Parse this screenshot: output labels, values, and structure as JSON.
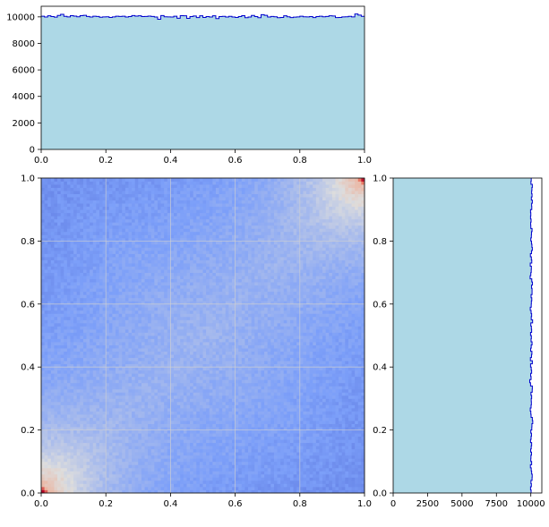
{
  "chart_data": [
    {
      "type": "histogram",
      "panel": "top-marginal",
      "orientation": "vertical",
      "xlim": [
        0,
        1
      ],
      "ylim": [
        0,
        10800
      ],
      "x_ticks": [
        "0.0",
        "0.2",
        "0.4",
        "0.6",
        "0.8",
        "1.0"
      ],
      "y_ticks": [
        "0",
        "2000",
        "4000",
        "6000",
        "8000",
        "10000"
      ],
      "bins": 100,
      "fill_color": "#add8e6",
      "edge_color": "#0000cd",
      "counts": [
        10050,
        9990,
        10080,
        10020,
        9980,
        10110,
        10190,
        10040,
        10000,
        10090,
        10060,
        10010,
        10090,
        10120,
        10030,
        9990,
        10050,
        10030,
        9970,
        10000,
        10010,
        9960,
        10000,
        10050,
        10030,
        10050,
        9990,
        10020,
        10100,
        10060,
        10080,
        10020,
        10030,
        10060,
        10030,
        9990,
        9820,
        10100,
        10010,
        10000,
        9990,
        10050,
        9900,
        10090,
        10080,
        9890,
        10020,
        10070,
        9950,
        10080,
        9960,
        10020,
        9990,
        10080,
        9870,
        10020,
        10040,
        9990,
        10040,
        9990,
        9960,
        10020,
        10090,
        9940,
        9990,
        10110,
        10020,
        9940,
        10170,
        10120,
        9990,
        10030,
        10010,
        9940,
        9960,
        10080,
        10010,
        9950,
        9980,
        10000,
        10050,
        10010,
        10000,
        10020,
        9950,
        10020,
        10050,
        10010,
        10030,
        10080,
        10070,
        9950,
        9960,
        10000,
        10010,
        10040,
        10000,
        10220,
        10130,
        10040
      ]
    },
    {
      "type": "heatmap",
      "panel": "joint",
      "colormap": "coolwarm",
      "xlim": [
        0,
        1
      ],
      "ylim": [
        0,
        1
      ],
      "x_ticks": [
        "0.0",
        "0.2",
        "0.4",
        "0.6",
        "0.8",
        "1.0"
      ],
      "y_ticks": [
        "0.0",
        "0.2",
        "0.4",
        "0.6",
        "0.8",
        "1.0"
      ],
      "grid": true,
      "bins": 100,
      "pattern": "highest density at corners (0,0) and (1,1), lowest at (0,1) and (1,0)"
    },
    {
      "type": "histogram",
      "panel": "right-marginal",
      "orientation": "horizontal",
      "xlim": [
        0,
        10800
      ],
      "ylim": [
        0,
        1
      ],
      "x_ticks": [
        "0",
        "2500",
        "5000",
        "7500",
        "10000"
      ],
      "y_ticks": [
        "0.0",
        "0.2",
        "0.4",
        "0.6",
        "0.8",
        "1.0"
      ],
      "bins": 100,
      "fill_color": "#add8e6",
      "edge_color": "#0000cd",
      "counts": [
        10020,
        9980,
        10040,
        10010,
        10090,
        10100,
        10060,
        10030,
        9970,
        10060,
        10000,
        10010,
        10050,
        9990,
        10030,
        10060,
        9980,
        10020,
        10050,
        10000,
        10070,
        10080,
        10140,
        10110,
        10020,
        10000,
        9960,
        10020,
        10040,
        10030,
        10060,
        10010,
        10100,
        10110,
        9980,
        9920,
        10020,
        9990,
        10060,
        10030,
        9980,
        10110,
        9970,
        10050,
        10080,
        9990,
        10030,
        10090,
        10020,
        10040,
        9980,
        10060,
        10040,
        10000,
        10130,
        10030,
        10060,
        10020,
        9960,
        10030,
        10040,
        10070,
        10020,
        10090,
        10090,
        10050,
        10120,
        10070,
        9950,
        10000,
        10030,
        10040,
        9960,
        10070,
        10040,
        9970,
        10050,
        10110,
        10080,
        10050,
        10000,
        10040,
        10050,
        10090,
        10000,
        9990,
        10020,
        9980,
        10000,
        9980,
        10070,
        10060,
        10110,
        10040,
        10090,
        10060,
        10080,
        10110,
        10010,
        10030
      ]
    }
  ]
}
